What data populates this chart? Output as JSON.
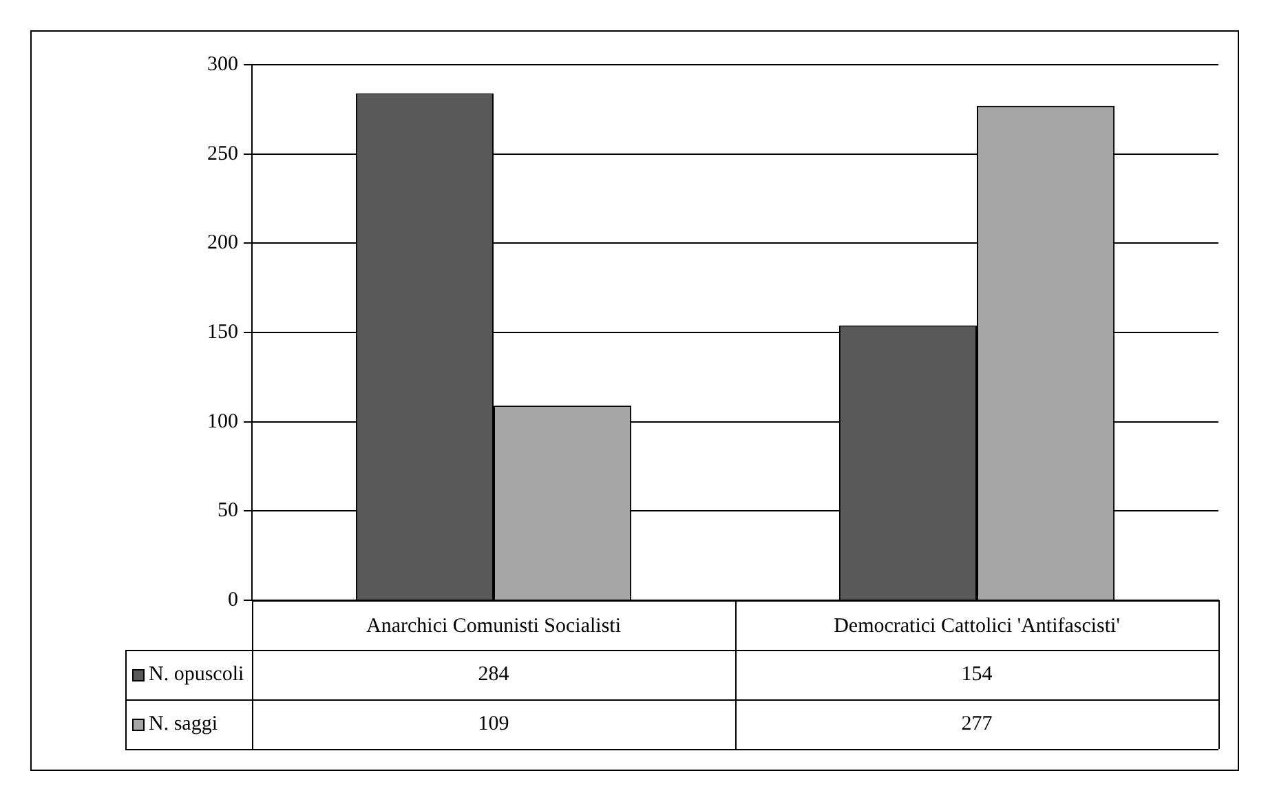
{
  "chart_data": {
    "type": "bar",
    "categories": [
      "Anarchici Comunisti Socialisti",
      "Democratici Cattolici 'Antifascisti'"
    ],
    "series": [
      {
        "name": "N. opuscoli",
        "color": "#595959",
        "values": [
          284,
          154
        ]
      },
      {
        "name": "N. saggi",
        "color": "#a6a6a6",
        "values": [
          109,
          277
        ]
      }
    ],
    "ylim": [
      0,
      300
    ],
    "yticks": [
      0,
      50,
      100,
      150,
      200,
      250,
      300
    ],
    "grid": "y",
    "legend": "bottom left",
    "data_labels": true
  }
}
